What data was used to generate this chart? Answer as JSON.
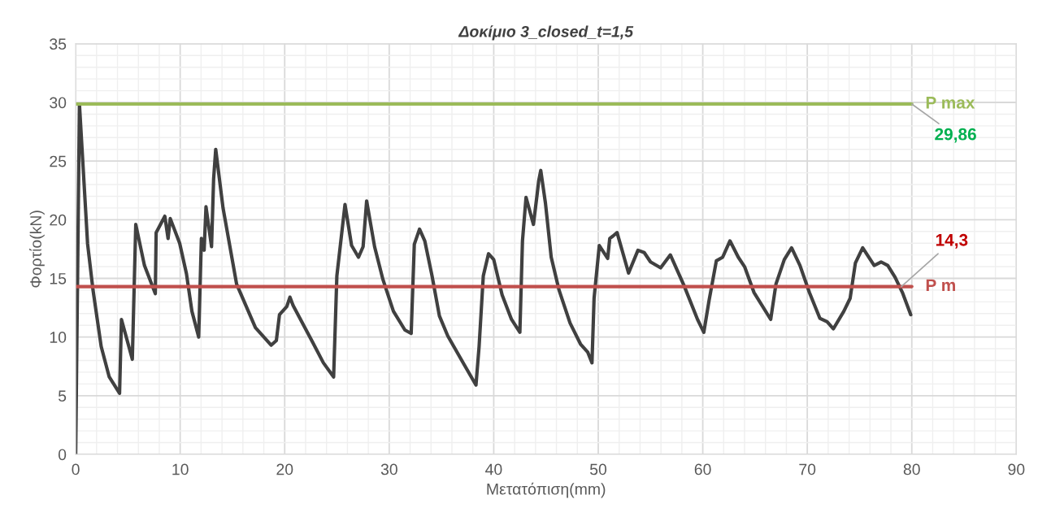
{
  "chart_data": {
    "type": "line",
    "title": "Δοκίμιο 3_closed_t=1,5",
    "xlabel": "Μετατόπιση(mm)",
    "ylabel": "Φορτίο(kN)",
    "xlim": [
      0,
      90
    ],
    "xticks": [
      0,
      10,
      20,
      30,
      40,
      50,
      60,
      70,
      80,
      90
    ],
    "ylim": [
      0,
      35
    ],
    "yticks": [
      0,
      5,
      10,
      15,
      20,
      25,
      30,
      35
    ],
    "grid": true,
    "legend": false,
    "marker": "none",
    "line_style": "solid",
    "series": [
      {
        "color": "#404040",
        "x": [
          0,
          0.36,
          1.14,
          1.66,
          2.44,
          3.21,
          4.2,
          4.38,
          5.42,
          5.75,
          6.58,
          7.62,
          7.7,
          8.53,
          8.84,
          9.05,
          9.95,
          10.6,
          11.12,
          11.77,
          12.03,
          12.29,
          12.47,
          13.0,
          13.2,
          13.4,
          14.1,
          15.4,
          17.2,
          18.7,
          19.2,
          19.5,
          20.2,
          20.5,
          20.8,
          22.65,
          23.7,
          24.68,
          24.99,
          25.77,
          26.4,
          27.06,
          27.5,
          27.84,
          28.6,
          29.4,
          30.4,
          31.5,
          32.1,
          32.4,
          32.9,
          33.4,
          34.1,
          34.8,
          35.6,
          37.2,
          38.3,
          38.6,
          39.0,
          39.5,
          40.0,
          40.8,
          41.7,
          42.5,
          42.75,
          43.09,
          43.8,
          44.17,
          44.3,
          44.5,
          44.95,
          45.5,
          46.25,
          47.3,
          48.3,
          49.0,
          49.4,
          49.6,
          50.1,
          50.9,
          51.1,
          51.4,
          51.8,
          52.9,
          53.8,
          54.4,
          55.0,
          55.97,
          56.9,
          58.2,
          59.5,
          60.1,
          60.6,
          61.3,
          61.9,
          62.6,
          63.4,
          64.0,
          64.9,
          66.5,
          67.0,
          67.8,
          68.5,
          69.3,
          70.2,
          71.2,
          71.9,
          72.5,
          73.5,
          74.1,
          74.6,
          75.3,
          76.4,
          77.06,
          77.7,
          78.4,
          79.1,
          79.9
        ],
        "values": [
          0,
          29.86,
          17.95,
          14.0,
          9.2,
          6.6,
          5.2,
          11.5,
          8.1,
          19.6,
          16.1,
          13.7,
          18.9,
          20.3,
          18.4,
          20.1,
          18.0,
          15.4,
          12.2,
          10.0,
          18.4,
          17.4,
          21.1,
          17.7,
          23.5,
          26.0,
          21.0,
          14.5,
          10.8,
          9.3,
          9.7,
          11.9,
          12.6,
          13.4,
          12.7,
          9.6,
          7.8,
          6.6,
          15.2,
          21.3,
          17.8,
          16.8,
          17.7,
          21.6,
          17.7,
          14.9,
          12.2,
          10.6,
          10.3,
          17.9,
          19.2,
          18.2,
          15.2,
          11.8,
          10.1,
          7.6,
          5.9,
          9.2,
          15.2,
          17.1,
          16.6,
          13.6,
          11.5,
          10.4,
          18.2,
          21.9,
          19.6,
          22.3,
          23.3,
          24.2,
          21.4,
          16.8,
          14.0,
          11.2,
          9.4,
          8.7,
          7.8,
          13.3,
          17.8,
          16.7,
          18.4,
          18.6,
          18.9,
          15.45,
          17.4,
          17.2,
          16.4,
          15.9,
          17.0,
          14.4,
          11.5,
          10.4,
          13.1,
          16.5,
          16.8,
          18.2,
          16.8,
          16.0,
          13.8,
          11.5,
          14.5,
          16.6,
          17.6,
          16.1,
          13.8,
          11.6,
          11.3,
          10.7,
          12.2,
          13.3,
          16.3,
          17.6,
          16.1,
          16.4,
          16.1,
          15.1,
          13.8,
          11.9
        ]
      },
      {
        "name": "P max",
        "color": "#9bbb59",
        "x": [
          0,
          80
        ],
        "values": [
          29.86,
          29.86
        ]
      },
      {
        "name": "P m",
        "color": "#c0504d",
        "x": [
          0,
          80
        ],
        "values": [
          14.3,
          14.3
        ]
      }
    ],
    "annotations": [
      {
        "text": "29,86",
        "x": 80,
        "y": 29.86
      },
      {
        "text": "14,3",
        "x": 79,
        "y": 14.3
      }
    ]
  }
}
